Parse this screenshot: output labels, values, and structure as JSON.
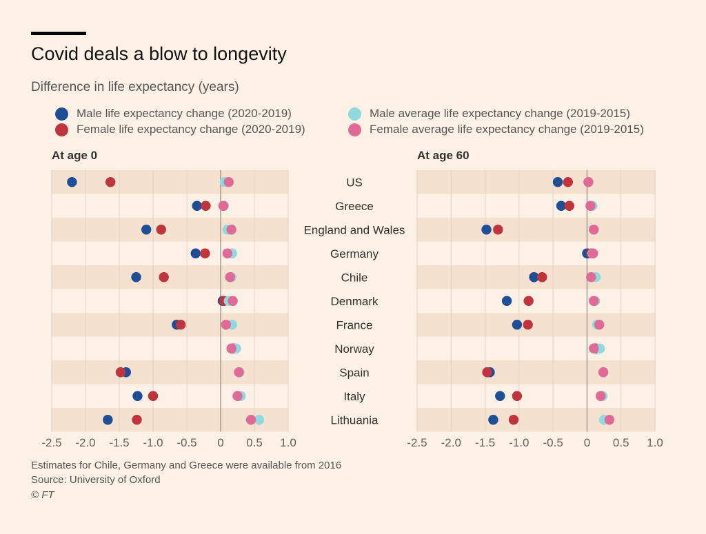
{
  "header": {
    "title": "Covid deals a blow to longevity",
    "subtitle": "Difference in life expectancy (years)"
  },
  "legend": [
    {
      "label": "Male life expectancy change (2020-2019)",
      "color": "#1d4e96"
    },
    {
      "label": "Female life expectancy change (2020-2019)",
      "color": "#c0343d"
    },
    {
      "label": "Male average life expectancy change (2019-2015)",
      "color": "#8fd9e0"
    },
    {
      "label": "Female average life expectancy change (2019-2015)",
      "color": "#e06a95"
    }
  ],
  "footer": {
    "note": "Estimates for Chile, Germany and Greece were available from 2016",
    "source": "Source: University of Oxford",
    "credit": "© FT"
  },
  "chart_data": {
    "type": "scatter",
    "categories": [
      "US",
      "Greece",
      "England and Wales",
      "Germany",
      "Chile",
      "Denmark",
      "France",
      "Norway",
      "Spain",
      "Italy",
      "Lithuania"
    ],
    "xlim": [
      -2.5,
      1.0
    ],
    "xticks": [
      "-2.5",
      "-2.0",
      "-1.5",
      "-1.0",
      "-0.5",
      "0",
      "0.5",
      "1.0"
    ],
    "xtick_values": [
      -2.5,
      -2.0,
      -1.5,
      -1.0,
      -0.5,
      0,
      0.5,
      1.0
    ],
    "panels": [
      {
        "title": "At age 0",
        "series": [
          {
            "name": "Male life expectancy change (2020-2019)",
            "color": "#1d4e96",
            "values": [
              -2.2,
              -0.35,
              -1.1,
              -0.37,
              -1.25,
              0.03,
              -0.65,
              0.2,
              -1.4,
              -1.23,
              -1.67
            ]
          },
          {
            "name": "Female life expectancy change (2020-2019)",
            "color": "#c0343d",
            "values": [
              -1.63,
              -0.22,
              -0.88,
              -0.23,
              -0.84,
              0.05,
              -0.59,
              0.17,
              -1.48,
              -1.0,
              -1.24
            ]
          },
          {
            "name": "Male average life expectancy change (2019-2015)",
            "color": "#8fd9e0",
            "values": [
              0.06,
              0.05,
              0.1,
              0.17,
              0.16,
              0.12,
              0.17,
              0.23,
              0.28,
              0.3,
              0.57
            ]
          },
          {
            "name": "Female average life expectancy change (2019-2015)",
            "color": "#e06a95",
            "values": [
              0.12,
              0.04,
              0.16,
              0.1,
              0.14,
              0.18,
              0.08,
              0.16,
              0.27,
              0.25,
              0.45
            ]
          }
        ]
      },
      {
        "title": "At age 60",
        "series": [
          {
            "name": "Male life expectancy change (2020-2019)",
            "color": "#1d4e96",
            "values": [
              -0.43,
              -0.38,
              -1.48,
              0.0,
              -0.78,
              -1.18,
              -1.03,
              0.12,
              -1.43,
              -1.28,
              -1.38
            ]
          },
          {
            "name": "Female life expectancy change (2020-2019)",
            "color": "#c0343d",
            "values": [
              -0.28,
              -0.26,
              -1.31,
              0.06,
              -0.66,
              -0.86,
              -0.87,
              0.13,
              -1.47,
              -1.03,
              -1.08
            ]
          },
          {
            "name": "Male average life expectancy change (2019-2015)",
            "color": "#8fd9e0",
            "values": [
              0.02,
              0.08,
              0.1,
              0.08,
              0.13,
              0.12,
              0.15,
              0.19,
              0.24,
              0.23,
              0.25
            ]
          },
          {
            "name": "Female average life expectancy change (2019-2015)",
            "color": "#e06a95",
            "values": [
              0.02,
              0.05,
              0.1,
              0.09,
              0.06,
              0.1,
              0.18,
              0.1,
              0.24,
              0.2,
              0.33
            ]
          }
        ]
      }
    ],
    "grid": true,
    "legend_position": "top"
  }
}
